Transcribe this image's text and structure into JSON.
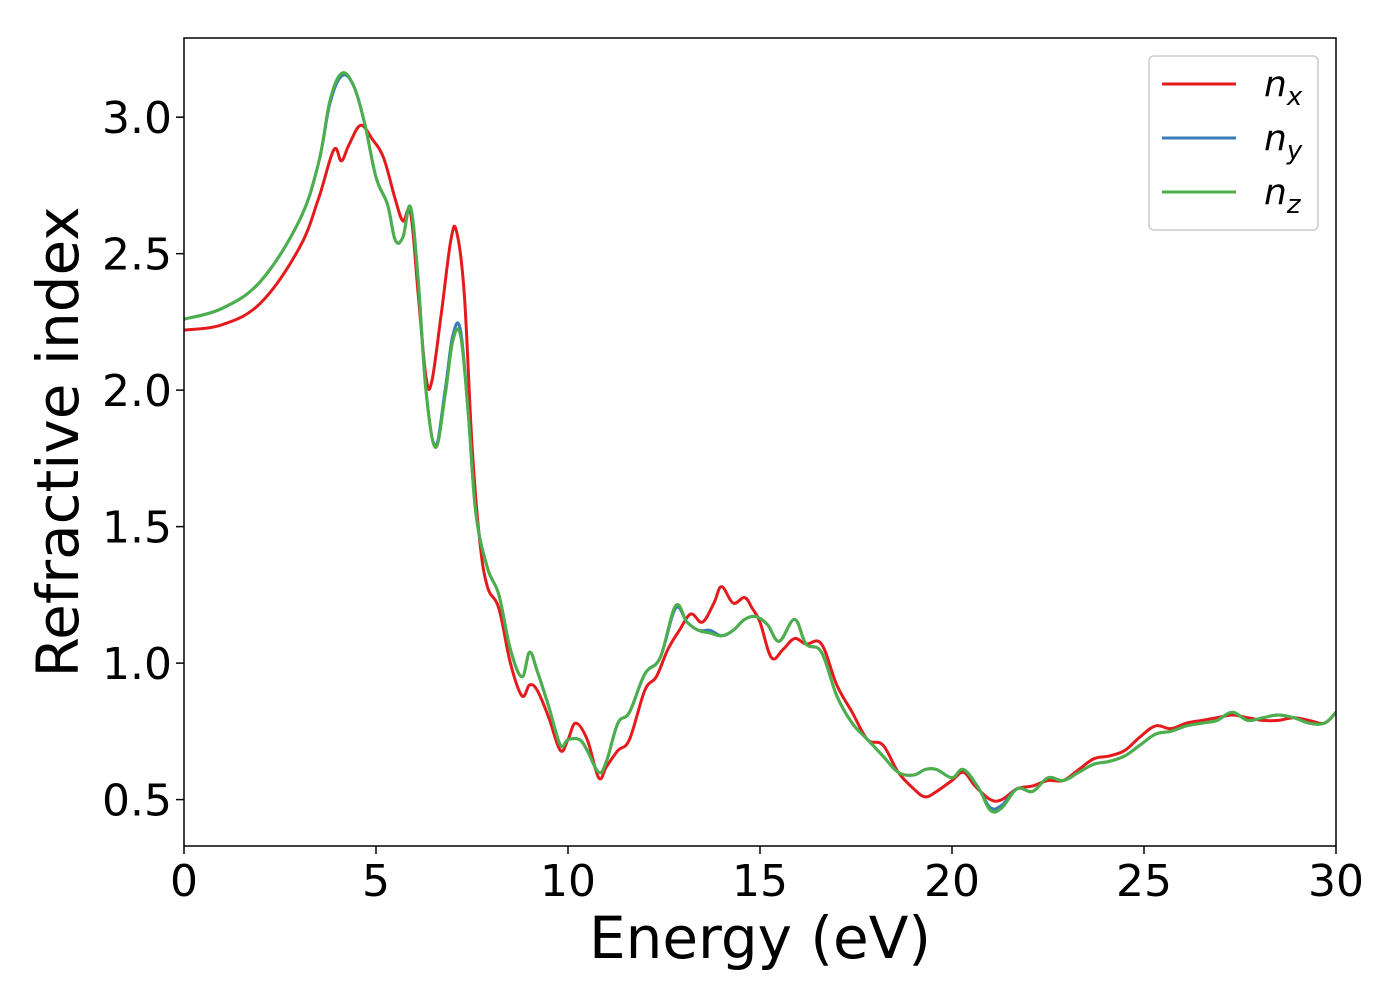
{
  "chart_data": {
    "type": "line",
    "xlabel": "Energy (eV)",
    "ylabel": "Refractive index",
    "xlim": [
      0,
      30
    ],
    "ylim": [
      0.33,
      3.29
    ],
    "x_ticks": [
      "0",
      "5",
      "10",
      "15",
      "20",
      "25",
      "30"
    ],
    "y_ticks": [
      "0.5",
      "1.0",
      "1.5",
      "2.0",
      "2.5",
      "3.0"
    ],
    "x_tick_values": [
      0,
      5,
      10,
      15,
      20,
      25,
      30
    ],
    "y_tick_values": [
      0.5,
      1.0,
      1.5,
      2.0,
      2.5,
      3.0
    ],
    "grid": false,
    "legend_position": "top-right",
    "series": [
      {
        "name": "n_x",
        "base": "n",
        "sub": "x",
        "color": "#e41a1c",
        "x": [
          0,
          1,
          2,
          3,
          3.5,
          3.9,
          4.1,
          4.3,
          4.6,
          4.9,
          5.2,
          5.5,
          5.7,
          5.9,
          6.1,
          6.3,
          6.45,
          6.7,
          6.95,
          7.1,
          7.3,
          7.5,
          7.7,
          7.9,
          8.2,
          8.5,
          8.8,
          9.0,
          9.2,
          9.5,
          9.8,
          10.0,
          10.2,
          10.5,
          10.8,
          11.0,
          11.3,
          11.6,
          12.0,
          12.3,
          12.6,
          12.9,
          13.2,
          13.5,
          13.8,
          14.0,
          14.3,
          14.6,
          14.8,
          15.0,
          15.3,
          15.6,
          15.9,
          16.2,
          16.6,
          17.0,
          17.4,
          17.8,
          18.2,
          18.6,
          19.0,
          19.3,
          19.6,
          20.0,
          20.3,
          20.6,
          21.0,
          21.3,
          21.7,
          22.1,
          22.5,
          22.9,
          23.3,
          23.7,
          24.1,
          24.5,
          24.9,
          25.3,
          25.7,
          26.1,
          26.5,
          26.9,
          27.3,
          27.7,
          28.1,
          28.5,
          28.9,
          29.3,
          29.7,
          30
        ],
        "y": [
          2.22,
          2.24,
          2.32,
          2.52,
          2.7,
          2.88,
          2.84,
          2.9,
          2.97,
          2.92,
          2.85,
          2.7,
          2.62,
          2.65,
          2.35,
          2.05,
          2.03,
          2.28,
          2.55,
          2.58,
          2.35,
          1.8,
          1.45,
          1.28,
          1.2,
          1.0,
          0.88,
          0.92,
          0.9,
          0.8,
          0.68,
          0.72,
          0.78,
          0.72,
          0.58,
          0.62,
          0.68,
          0.72,
          0.9,
          0.95,
          1.05,
          1.12,
          1.18,
          1.15,
          1.22,
          1.28,
          1.22,
          1.24,
          1.2,
          1.15,
          1.02,
          1.05,
          1.09,
          1.07,
          1.07,
          0.92,
          0.82,
          0.72,
          0.7,
          0.6,
          0.54,
          0.51,
          0.53,
          0.57,
          0.6,
          0.55,
          0.5,
          0.5,
          0.54,
          0.55,
          0.57,
          0.57,
          0.61,
          0.65,
          0.66,
          0.68,
          0.73,
          0.77,
          0.76,
          0.78,
          0.79,
          0.8,
          0.81,
          0.8,
          0.79,
          0.79,
          0.8,
          0.79,
          0.78,
          0.82
        ]
      },
      {
        "name": "n_y",
        "base": "n",
        "sub": "y",
        "color": "#377eb8",
        "x": [
          0,
          1,
          2,
          3,
          3.5,
          3.8,
          4.1,
          4.4,
          4.7,
          5.0,
          5.3,
          5.5,
          5.7,
          5.9,
          6.1,
          6.3,
          6.55,
          6.8,
          7.0,
          7.2,
          7.4,
          7.6,
          7.9,
          8.2,
          8.5,
          8.8,
          9.0,
          9.2,
          9.5,
          9.8,
          10.0,
          10.3,
          10.5,
          10.8,
          11.0,
          11.3,
          11.6,
          12.0,
          12.4,
          12.8,
          13.1,
          13.4,
          13.7,
          14.0,
          14.3,
          14.6,
          14.9,
          15.2,
          15.5,
          15.9,
          16.2,
          16.6,
          17.0,
          17.4,
          17.8,
          18.2,
          18.6,
          19.0,
          19.3,
          19.6,
          20.0,
          20.3,
          20.7,
          21.0,
          21.3,
          21.7,
          22.1,
          22.5,
          22.9,
          23.3,
          23.7,
          24.1,
          24.5,
          24.9,
          25.3,
          25.7,
          26.1,
          26.5,
          26.9,
          27.3,
          27.7,
          28.1,
          28.5,
          28.9,
          29.3,
          29.7,
          30
        ],
        "y": [
          2.26,
          2.3,
          2.4,
          2.62,
          2.83,
          3.05,
          3.15,
          3.12,
          2.98,
          2.78,
          2.68,
          2.55,
          2.56,
          2.67,
          2.4,
          2.0,
          1.8,
          2.0,
          2.2,
          2.22,
          1.92,
          1.55,
          1.35,
          1.25,
          1.05,
          0.95,
          1.04,
          0.97,
          0.84,
          0.7,
          0.72,
          0.72,
          0.68,
          0.6,
          0.64,
          0.78,
          0.82,
          0.96,
          1.02,
          1.2,
          1.15,
          1.12,
          1.12,
          1.1,
          1.12,
          1.16,
          1.17,
          1.14,
          1.08,
          1.16,
          1.07,
          1.04,
          0.88,
          0.78,
          0.72,
          0.66,
          0.6,
          0.59,
          0.61,
          0.61,
          0.58,
          0.61,
          0.54,
          0.47,
          0.48,
          0.54,
          0.53,
          0.58,
          0.57,
          0.6,
          0.63,
          0.64,
          0.66,
          0.7,
          0.74,
          0.75,
          0.77,
          0.78,
          0.79,
          0.82,
          0.79,
          0.8,
          0.81,
          0.8,
          0.78,
          0.78,
          0.82
        ]
      },
      {
        "name": "n_z",
        "base": "n",
        "sub": "z",
        "color": "#4daf4a",
        "x": [
          0,
          1,
          2,
          3,
          3.5,
          3.8,
          4.1,
          4.4,
          4.7,
          5.0,
          5.3,
          5.5,
          5.7,
          5.9,
          6.1,
          6.3,
          6.55,
          6.8,
          7.0,
          7.2,
          7.4,
          7.6,
          7.9,
          8.2,
          8.5,
          8.8,
          9.0,
          9.2,
          9.5,
          9.8,
          10.0,
          10.3,
          10.5,
          10.8,
          11.0,
          11.3,
          11.6,
          12.0,
          12.4,
          12.8,
          13.1,
          13.4,
          13.7,
          14.0,
          14.3,
          14.6,
          14.9,
          15.2,
          15.5,
          15.9,
          16.2,
          16.6,
          17.0,
          17.4,
          17.8,
          18.2,
          18.6,
          19.0,
          19.3,
          19.6,
          20.0,
          20.3,
          20.7,
          21.0,
          21.3,
          21.7,
          22.1,
          22.5,
          22.9,
          23.3,
          23.7,
          24.1,
          24.5,
          24.9,
          25.3,
          25.7,
          26.1,
          26.5,
          26.9,
          27.3,
          27.7,
          28.1,
          28.5,
          28.9,
          29.3,
          29.7,
          30
        ],
        "y": [
          2.26,
          2.3,
          2.4,
          2.62,
          2.83,
          3.06,
          3.16,
          3.12,
          2.98,
          2.78,
          2.68,
          2.55,
          2.56,
          2.67,
          2.4,
          2.0,
          1.79,
          1.98,
          2.18,
          2.2,
          1.92,
          1.55,
          1.35,
          1.25,
          1.05,
          0.95,
          1.04,
          0.97,
          0.84,
          0.7,
          0.72,
          0.72,
          0.68,
          0.6,
          0.64,
          0.78,
          0.82,
          0.96,
          1.02,
          1.21,
          1.15,
          1.12,
          1.11,
          1.1,
          1.12,
          1.16,
          1.17,
          1.14,
          1.08,
          1.16,
          1.07,
          1.04,
          0.88,
          0.78,
          0.72,
          0.66,
          0.6,
          0.59,
          0.61,
          0.61,
          0.58,
          0.61,
          0.54,
          0.46,
          0.47,
          0.54,
          0.53,
          0.58,
          0.57,
          0.6,
          0.63,
          0.64,
          0.66,
          0.7,
          0.74,
          0.75,
          0.77,
          0.78,
          0.79,
          0.82,
          0.79,
          0.8,
          0.81,
          0.8,
          0.78,
          0.78,
          0.82
        ]
      }
    ]
  }
}
